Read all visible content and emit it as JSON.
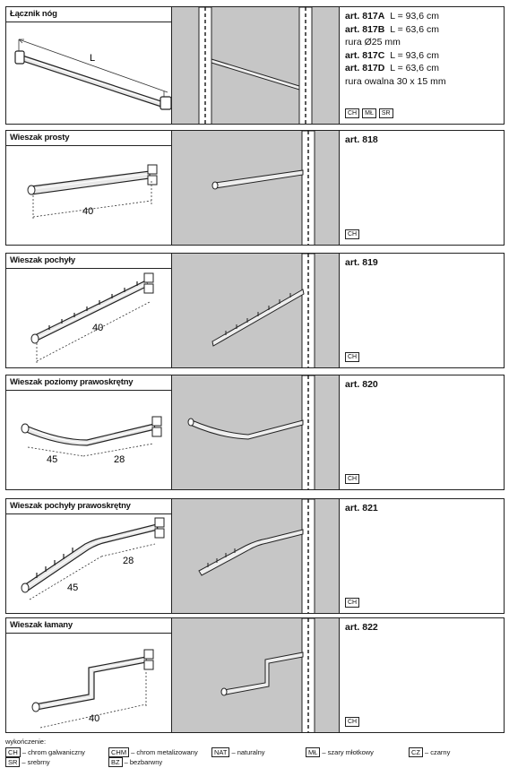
{
  "rows": [
    {
      "title": "Łącznik nóg",
      "lines": [
        {
          "code": "art. 817A",
          "text": "L = 93,6 cm"
        },
        {
          "code": "art. 817B",
          "text": "L = 63,6 cm"
        },
        {
          "code": "",
          "text": "rura Ø25 mm"
        },
        {
          "code": "art. 817C",
          "text": "L = 93,6 cm"
        },
        {
          "code": "art. 817D",
          "text": "L = 63,6 cm"
        },
        {
          "code": "",
          "text": "rura owalna 30 x 15 mm"
        }
      ],
      "badges": [
        "CH",
        "MŁ",
        "SR"
      ],
      "dims": [
        "L"
      ]
    },
    {
      "title": "Wieszak prosty",
      "lines": [
        {
          "code": "art. 818",
          "text": ""
        }
      ],
      "badges": [
        "CH"
      ],
      "dims": [
        "40"
      ]
    },
    {
      "title": "Wieszak pochyły",
      "lines": [
        {
          "code": "art. 819",
          "text": ""
        }
      ],
      "badges": [
        "CH"
      ],
      "dims": [
        "40"
      ]
    },
    {
      "title": "Wieszak poziomy prawoskrętny",
      "lines": [
        {
          "code": "art. 820",
          "text": ""
        }
      ],
      "badges": [
        "CH"
      ],
      "dims": [
        "45",
        "28"
      ]
    },
    {
      "title": "Wieszak pochyły prawoskrętny",
      "lines": [
        {
          "code": "art. 821",
          "text": ""
        }
      ],
      "badges": [
        "CH"
      ],
      "dims": [
        "28",
        "45"
      ]
    },
    {
      "title": "Wieszak łamany",
      "lines": [
        {
          "code": "art. 822",
          "text": ""
        }
      ],
      "badges": [
        "CH"
      ],
      "dims": [
        "40"
      ]
    }
  ],
  "legend": {
    "title": "wykończenie:",
    "items": [
      {
        "code": "CH",
        "text": "– chrom galwaniczny"
      },
      {
        "code": "CHM",
        "text": "– chrom metalizowany"
      },
      {
        "code": "NAT",
        "text": "– naturalny"
      },
      {
        "code": "MŁ",
        "text": "– szary młotkowy"
      },
      {
        "code": "CZ",
        "text": "– czarny"
      },
      {
        "code": "SR",
        "text": "– srebrny"
      },
      {
        "code": "BZ",
        "text": "– bezbarwny"
      }
    ]
  }
}
